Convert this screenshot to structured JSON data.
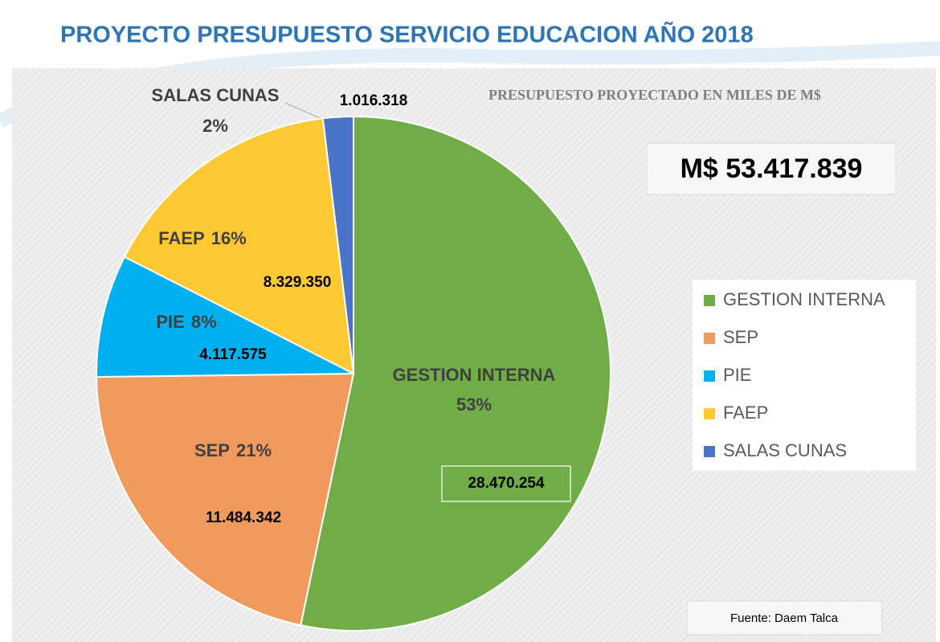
{
  "chart_data": {
    "type": "pie",
    "title": "PROYECTO PRESUPUESTO SERVICIO EDUCACION AÑO 2018",
    "subtitle": "PRESUPUESTO PROYECTADO  EN MILES DE M$",
    "annotation": "M$ 53.417.839",
    "source": "Fuente: Daem Talca",
    "categories": [
      "GESTION INTERNA",
      "SEP",
      "PIE",
      "FAEP",
      "SALAS CUNAS"
    ],
    "values": [
      28470254,
      11484342,
      4117575,
      8329350,
      1016318
    ],
    "value_labels": [
      "28.470.254",
      "11.484.342",
      "4.117.575",
      "8.329.350",
      "1.016.318"
    ],
    "percent_labels": [
      "53%",
      "21%",
      "8%",
      "16%",
      "2%"
    ],
    "colors": [
      "#70ad47",
      "#f09a5e",
      "#00b0f0",
      "#ffc934",
      "#4a74c8"
    ],
    "legend": "right"
  }
}
